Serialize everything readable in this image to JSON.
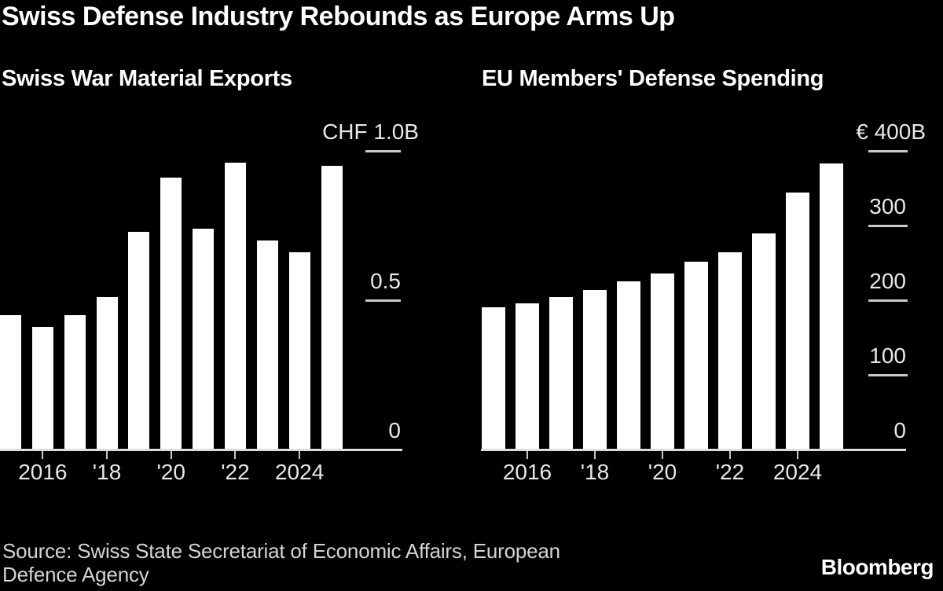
{
  "page_title": "Swiss Defense Industry Rebounds as Europe Arms Up",
  "footer": {
    "source_line1": "Source: Swiss State Secretariat of Economic Affairs, European",
    "source_line2": "Defence Agency",
    "brand": "Bloomberg"
  },
  "colors": {
    "background": "#000000",
    "bar": "#ffffff",
    "title_text": "#ffffff",
    "axis_text": "#e8e8e8",
    "axis_line": "#dddddd",
    "source_text": "#d4d4d4"
  },
  "chart_data": [
    {
      "type": "bar",
      "title": "Swiss War Material Exports",
      "categories": [
        "2015",
        "2016",
        "2017",
        "2018",
        "2019",
        "2020",
        "2021",
        "2022",
        "2023",
        "2024",
        "2025"
      ],
      "values": [
        0.45,
        0.41,
        0.45,
        0.51,
        0.73,
        0.91,
        0.74,
        0.96,
        0.7,
        0.66,
        0.95
      ],
      "ylim": [
        0,
        1.0
      ],
      "y_ticks": [
        0,
        0.5,
        1.0
      ],
      "y_tick_labels": [
        "0",
        "0.5",
        "CHF 1.0B"
      ],
      "x_ticks": [
        "2016",
        "2018",
        "2020",
        "2022",
        "2024"
      ],
      "x_tick_labels": [
        "2016",
        "'18",
        "'20",
        "'22",
        "2024"
      ],
      "grid": false,
      "legend": null,
      "bar_color": "#ffffff"
    },
    {
      "type": "bar",
      "title": "EU Members' Defense Spending",
      "categories": [
        "2015",
        "2016",
        "2017",
        "2018",
        "2019",
        "2020",
        "2021",
        "2022",
        "2023",
        "2024",
        "2025"
      ],
      "values": [
        191,
        196,
        204,
        214,
        225,
        236,
        252,
        264,
        290,
        344,
        383
      ],
      "ylim": [
        0,
        400
      ],
      "y_ticks": [
        0,
        100,
        200,
        300,
        400
      ],
      "y_tick_labels": [
        "0",
        "100",
        "200",
        "300",
        "€ 400B"
      ],
      "x_ticks": [
        "2016",
        "2018",
        "2020",
        "2022",
        "2024"
      ],
      "x_tick_labels": [
        "2016",
        "'18",
        "'20",
        "'22",
        "2024"
      ],
      "grid": false,
      "legend": null,
      "bar_color": "#ffffff"
    }
  ]
}
